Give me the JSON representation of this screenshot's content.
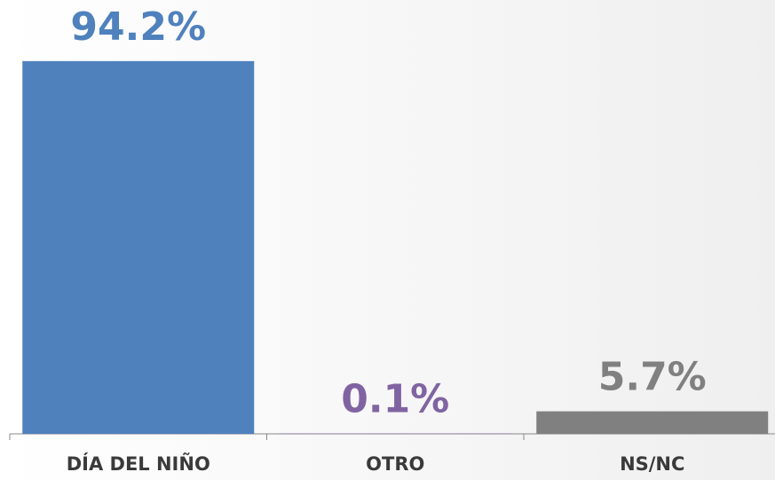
{
  "chart_data": {
    "type": "bar",
    "categories": [
      "DÍA DEL NIÑO",
      "OTRO",
      "NS/NC"
    ],
    "values": [
      94.2,
      0.1,
      5.7
    ],
    "value_labels": [
      "94.2%",
      "0.1%",
      "5.7%"
    ],
    "colors": [
      "#4f81bd",
      "#8064a2",
      "#808080"
    ],
    "ylim": [
      0,
      100
    ]
  }
}
